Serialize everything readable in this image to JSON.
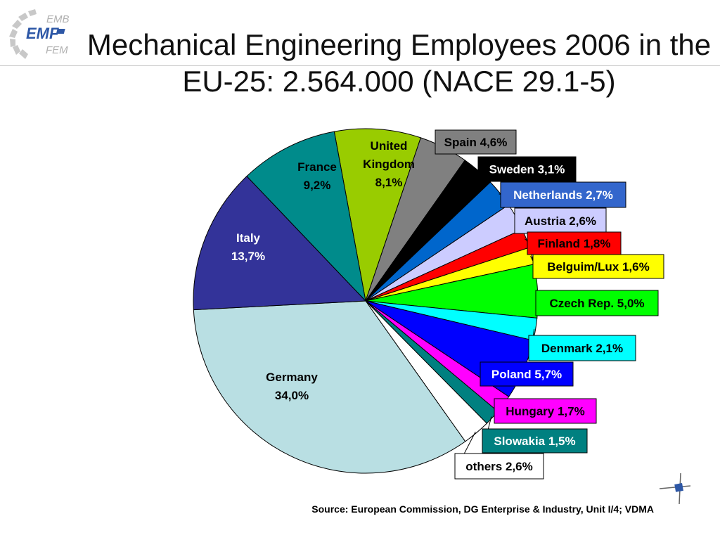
{
  "title": "Mechanical Engineering Employees 2006 in the EU-25: 2.564.000 (NACE 29.1-5)",
  "logo": {
    "top": "EMB",
    "middle": "EMF",
    "bottom": "FEM"
  },
  "source": "Source: European Commission, DG Enterprise & Industry, Unit I/4; VDMA",
  "chart_data": {
    "type": "pie",
    "title": "Mechanical Engineering Employees 2006 in the EU-25: 2.564.000 (NACE 29.1-5)",
    "unit": "%",
    "slices": [
      {
        "label": "United Kingdom",
        "value": 8.1,
        "text": "United Kingdom 8,1%",
        "color": "#99cc00"
      },
      {
        "label": "Spain",
        "value": 4.6,
        "text": "Spain 4,6%",
        "color": "#808080"
      },
      {
        "label": "Sweden",
        "value": 3.1,
        "text": "Sweden 3,1%",
        "color": "#000000"
      },
      {
        "label": "Netherlands",
        "value": 2.7,
        "text": "Netherlands 2,7%",
        "color": "#0066cc"
      },
      {
        "label": "Austria",
        "value": 2.6,
        "text": "Austria 2,6%",
        "color": "#ccccff"
      },
      {
        "label": "Finland",
        "value": 1.8,
        "text": "Finland 1,8%",
        "color": "#ff0000"
      },
      {
        "label": "Belguim/Lux",
        "value": 1.6,
        "text": "Belguim/Lux 1,6%",
        "color": "#ffff00"
      },
      {
        "label": "Czech Rep.",
        "value": 5.0,
        "text": "Czech Rep. 5,0%",
        "color": "#00ff00"
      },
      {
        "label": "Denmark",
        "value": 2.1,
        "text": "Denmark 2,1%",
        "color": "#00ffff"
      },
      {
        "label": "Poland",
        "value": 5.7,
        "text": "Poland 5,7%",
        "color": "#0000ff"
      },
      {
        "label": "Hungary",
        "value": 1.7,
        "text": "Hungary 1,7%",
        "color": "#ff00ff"
      },
      {
        "label": "Slowakia",
        "value": 1.5,
        "text": "Slowakia 1,5%",
        "color": "#008080"
      },
      {
        "label": "others",
        "value": 2.6,
        "text": "others 2,6%",
        "color": "#ffffff"
      },
      {
        "label": "Germany",
        "value": 34.0,
        "text": "Germany 34,0%",
        "color": "#b9dfe3"
      },
      {
        "label": "Italy",
        "value": 13.7,
        "text": "Italy 13,7%",
        "color": "#333399"
      },
      {
        "label": "France",
        "value": 9.2,
        "text": "France 9,2%",
        "color": "#008b8b"
      }
    ]
  }
}
